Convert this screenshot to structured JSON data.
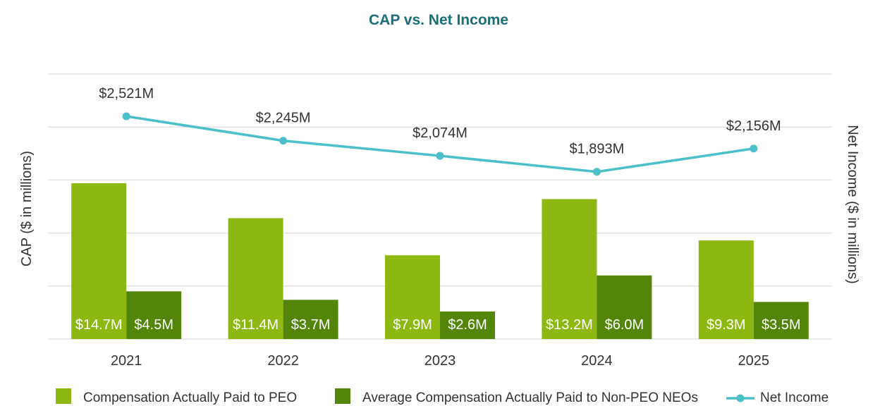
{
  "chart_data": {
    "type": "bar",
    "title": "CAP vs. Net Income",
    "categories": [
      "2021",
      "2022",
      "2023",
      "2024",
      "2025"
    ],
    "ylabel": "CAP ($ in millions)",
    "y2label": "Net Income ($ in millions)",
    "ylim": [
      0,
      25
    ],
    "y2lim": [
      0,
      3000
    ],
    "grid": true,
    "legend_position": "bottom",
    "series": [
      {
        "name": "Compensation Actually Paid to PEO",
        "type": "bar",
        "axis": "left",
        "color": "#8cb811",
        "values": [
          14.7,
          11.4,
          7.9,
          13.2,
          9.3
        ],
        "labels": [
          "$14.7M",
          "$11.4M",
          "$7.9M",
          "$13.2M",
          "$9.3M"
        ]
      },
      {
        "name": "Average Compensation Actually Paid to Non-PEO NEOs",
        "type": "bar",
        "axis": "left",
        "color": "#53850a",
        "values": [
          4.5,
          3.7,
          2.6,
          6.0,
          3.5
        ],
        "labels": [
          "$4.5M",
          "$3.7M",
          "$2.6M",
          "$6.0M",
          "$3.5M"
        ]
      },
      {
        "name": "Net Income",
        "type": "line",
        "axis": "right",
        "color": "#4bbfca",
        "values": [
          2521,
          2245,
          2074,
          1893,
          2156
        ],
        "labels": [
          "$2,521M",
          "$2,245M",
          "$2,074M",
          "$1,893M",
          "$2,156M"
        ]
      }
    ]
  }
}
